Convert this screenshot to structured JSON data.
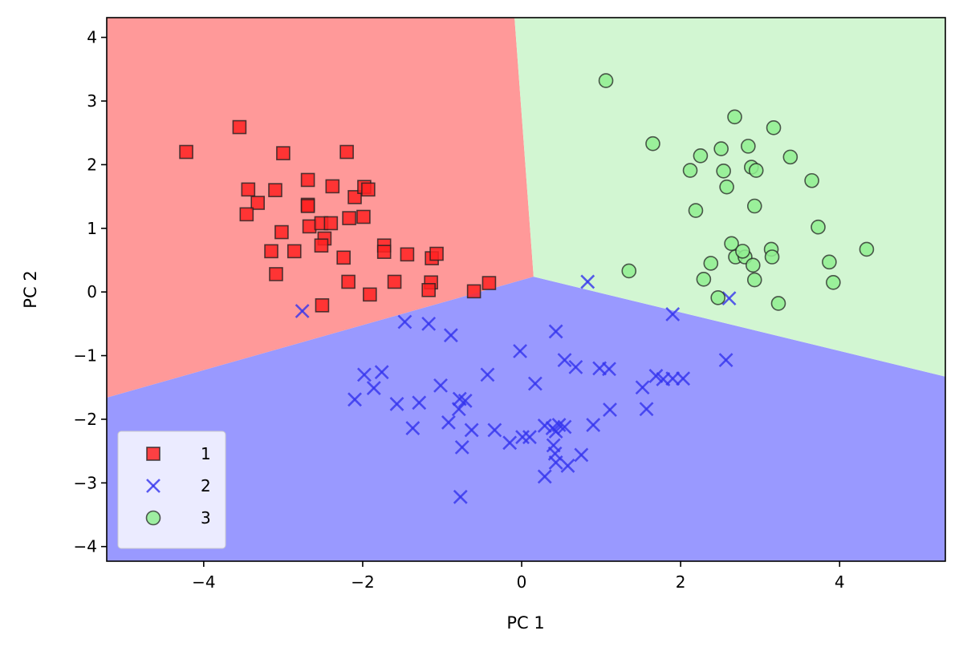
{
  "chart_data": {
    "type": "scatter",
    "title": "",
    "xlabel": "PC 1",
    "ylabel": "PC 2",
    "xlim": [
      -5.22,
      5.33
    ],
    "ylim": [
      -4.23,
      4.31
    ],
    "xticks": [
      -4,
      -2,
      0,
      2,
      4
    ],
    "yticks": [
      -4,
      -3,
      -2,
      -1,
      0,
      1,
      2,
      3,
      4
    ],
    "xtick_labels": [
      "−4",
      "−2",
      "0",
      "2",
      "4"
    ],
    "ytick_labels": [
      "−4",
      "−3",
      "−2",
      "−1",
      "0",
      "1",
      "2",
      "3",
      "4"
    ],
    "grid": false,
    "legend": {
      "placement": "lower-left",
      "entries": [
        "1",
        "2",
        "3"
      ]
    },
    "decision_regions": [
      {
        "class": "1",
        "color": "#ff9999",
        "vertices": [
          [
            -5.22,
            4.31
          ],
          [
            -0.09,
            4.31
          ],
          [
            0.15,
            0.24
          ],
          [
            -5.22,
            -1.66
          ]
        ]
      },
      {
        "class": "2",
        "color": "#9999ff",
        "vertices": [
          [
            -5.22,
            -1.66
          ],
          [
            0.15,
            0.24
          ],
          [
            5.33,
            -1.33
          ],
          [
            5.33,
            -4.23
          ],
          [
            -5.22,
            -4.23
          ]
        ]
      },
      {
        "class": "3",
        "color": "#d2f6d2",
        "vertices": [
          [
            -0.09,
            4.31
          ],
          [
            5.33,
            4.31
          ],
          [
            5.33,
            -1.33
          ],
          [
            0.15,
            0.24
          ]
        ]
      }
    ],
    "series": [
      {
        "name": "1",
        "marker": "square",
        "color": "#ff2222",
        "points": [
          [
            -4.22,
            2.2
          ],
          [
            -3.55,
            2.59
          ],
          [
            -3.0,
            2.18
          ],
          [
            -2.2,
            2.2
          ],
          [
            -3.44,
            1.61
          ],
          [
            -3.1,
            1.6
          ],
          [
            -2.69,
            1.76
          ],
          [
            -2.38,
            1.66
          ],
          [
            -2.1,
            1.49
          ],
          [
            -1.98,
            1.65
          ],
          [
            -1.93,
            1.61
          ],
          [
            -2.69,
            1.37
          ],
          [
            -2.69,
            1.35
          ],
          [
            -3.32,
            1.4
          ],
          [
            -3.46,
            1.22
          ],
          [
            -3.02,
            0.94
          ],
          [
            -3.15,
            0.64
          ],
          [
            -2.86,
            0.64
          ],
          [
            -3.09,
            0.28
          ],
          [
            -2.67,
            1.03
          ],
          [
            -2.52,
            1.08
          ],
          [
            -2.4,
            1.08
          ],
          [
            -2.48,
            0.84
          ],
          [
            -2.52,
            0.73
          ],
          [
            -2.17,
            1.16
          ],
          [
            -1.99,
            1.18
          ],
          [
            -2.24,
            0.54
          ],
          [
            -1.73,
            0.73
          ],
          [
            -1.73,
            0.63
          ],
          [
            -1.44,
            0.59
          ],
          [
            -1.13,
            0.53
          ],
          [
            -1.07,
            0.6
          ],
          [
            -2.18,
            0.16
          ],
          [
            -1.6,
            0.16
          ],
          [
            -1.14,
            0.15
          ],
          [
            -1.17,
            0.03
          ],
          [
            -1.91,
            -0.04
          ],
          [
            -2.51,
            -0.21
          ],
          [
            -0.6,
            0.01
          ],
          [
            -0.41,
            0.14
          ]
        ]
      },
      {
        "name": "2",
        "marker": "x",
        "color": "#3333ee",
        "points": [
          [
            -2.76,
            -0.3
          ],
          [
            -1.47,
            -0.47
          ],
          [
            -1.17,
            -0.5
          ],
          [
            -0.89,
            -0.68
          ],
          [
            0.83,
            0.16
          ],
          [
            1.9,
            -0.35
          ],
          [
            2.61,
            -0.1
          ],
          [
            0.43,
            -0.62
          ],
          [
            -0.02,
            -0.93
          ],
          [
            2.57,
            -1.07
          ],
          [
            -0.43,
            -1.3
          ],
          [
            -1.02,
            -1.47
          ],
          [
            -1.98,
            -1.3
          ],
          [
            -1.76,
            -1.26
          ],
          [
            -1.86,
            -1.51
          ],
          [
            -2.1,
            -1.69
          ],
          [
            -1.57,
            -1.76
          ],
          [
            -1.29,
            -1.74
          ],
          [
            -1.37,
            -2.14
          ],
          [
            -0.78,
            -1.68
          ],
          [
            -0.71,
            -1.71
          ],
          [
            0.17,
            -1.44
          ],
          [
            0.54,
            -1.07
          ],
          [
            0.68,
            -1.18
          ],
          [
            0.98,
            -1.2
          ],
          [
            1.1,
            -1.21
          ],
          [
            1.69,
            -1.32
          ],
          [
            1.78,
            -1.37
          ],
          [
            1.9,
            -1.36
          ],
          [
            2.03,
            -1.36
          ],
          [
            1.52,
            -1.5
          ],
          [
            1.11,
            -1.85
          ],
          [
            1.57,
            -1.84
          ],
          [
            -0.92,
            -2.05
          ],
          [
            -0.63,
            -2.17
          ],
          [
            -0.34,
            -2.17
          ],
          [
            -0.75,
            -2.44
          ],
          [
            -0.15,
            -2.37
          ],
          [
            0.01,
            -2.28
          ],
          [
            0.1,
            -2.28
          ],
          [
            0.29,
            -2.1
          ],
          [
            0.39,
            -2.14
          ],
          [
            0.43,
            -2.19
          ],
          [
            0.47,
            -2.09
          ],
          [
            0.54,
            -2.12
          ],
          [
            0.9,
            -2.09
          ],
          [
            0.4,
            -2.41
          ],
          [
            0.42,
            -2.54
          ],
          [
            0.43,
            -2.68
          ],
          [
            0.29,
            -2.9
          ],
          [
            0.58,
            -2.73
          ],
          [
            0.75,
            -2.56
          ],
          [
            -0.77,
            -3.22
          ],
          [
            -0.79,
            -1.84
          ]
        ]
      },
      {
        "name": "3",
        "marker": "circle",
        "color": "#90ee90",
        "points": [
          [
            1.06,
            3.32
          ],
          [
            1.65,
            2.33
          ],
          [
            2.68,
            2.75
          ],
          [
            3.17,
            2.58
          ],
          [
            2.51,
            2.25
          ],
          [
            2.25,
            2.14
          ],
          [
            2.12,
            1.91
          ],
          [
            2.54,
            1.9
          ],
          [
            2.58,
            1.65
          ],
          [
            2.89,
            1.96
          ],
          [
            2.95,
            1.91
          ],
          [
            3.38,
            2.12
          ],
          [
            3.65,
            1.75
          ],
          [
            2.93,
            1.35
          ],
          [
            2.19,
            1.28
          ],
          [
            3.73,
            1.02
          ],
          [
            2.64,
            0.76
          ],
          [
            1.35,
            0.33
          ],
          [
            2.38,
            0.45
          ],
          [
            2.29,
            0.2
          ],
          [
            2.47,
            -0.09
          ],
          [
            2.69,
            0.55
          ],
          [
            2.81,
            0.55
          ],
          [
            2.78,
            0.64
          ],
          [
            3.14,
            0.67
          ],
          [
            2.91,
            0.42
          ],
          [
            2.93,
            0.19
          ],
          [
            3.15,
            0.55
          ],
          [
            3.23,
            -0.18
          ],
          [
            3.87,
            0.47
          ],
          [
            3.92,
            0.15
          ],
          [
            4.34,
            0.67
          ],
          [
            2.85,
            2.29
          ]
        ]
      }
    ]
  }
}
